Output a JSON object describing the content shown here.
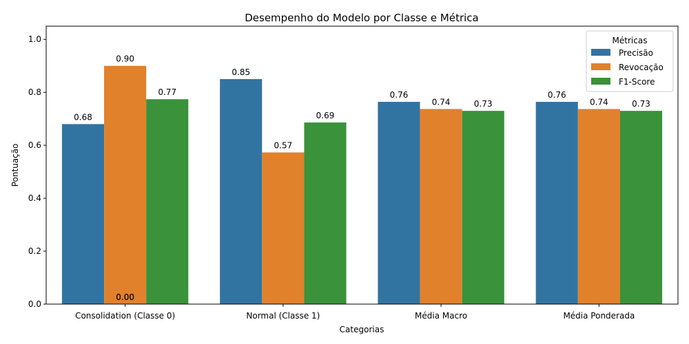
{
  "chart_data": {
    "type": "bar",
    "title": "Desempenho do Modelo por Classe e Métrica",
    "xlabel": "Categorias",
    "ylabel": "Pontuação",
    "ylim": [
      0,
      1.05
    ],
    "yticks": [
      "0.0",
      "0.2",
      "0.4",
      "0.6",
      "0.8",
      "1.0"
    ],
    "categories": [
      "Consolidation (Classe 0)",
      "Normal (Classe 1)",
      "Média Macro",
      "Média Ponderada"
    ],
    "series": [
      {
        "name": "Precisão",
        "color": "#3274a1",
        "values": [
          0.68,
          0.85,
          0.764,
          0.764
        ],
        "labels": [
          "0.68",
          "0.85",
          "0.76",
          "0.76"
        ]
      },
      {
        "name": "Revocação",
        "color": "#e1812c",
        "values": [
          0.9,
          0.573,
          0.737,
          0.737
        ],
        "labels": [
          "0.90",
          "0.57",
          "0.74",
          "0.74"
        ]
      },
      {
        "name": "F1-Score",
        "color": "#3a923a",
        "values": [
          0.774,
          0.686,
          0.73,
          0.73
        ],
        "labels": [
          "0.77",
          "0.69",
          "0.73",
          "0.73"
        ]
      }
    ],
    "extra_labels": [
      "0.00",
      "0.00"
    ],
    "legend": {
      "title": "Métricas",
      "position": "top-right"
    },
    "grid": false
  }
}
